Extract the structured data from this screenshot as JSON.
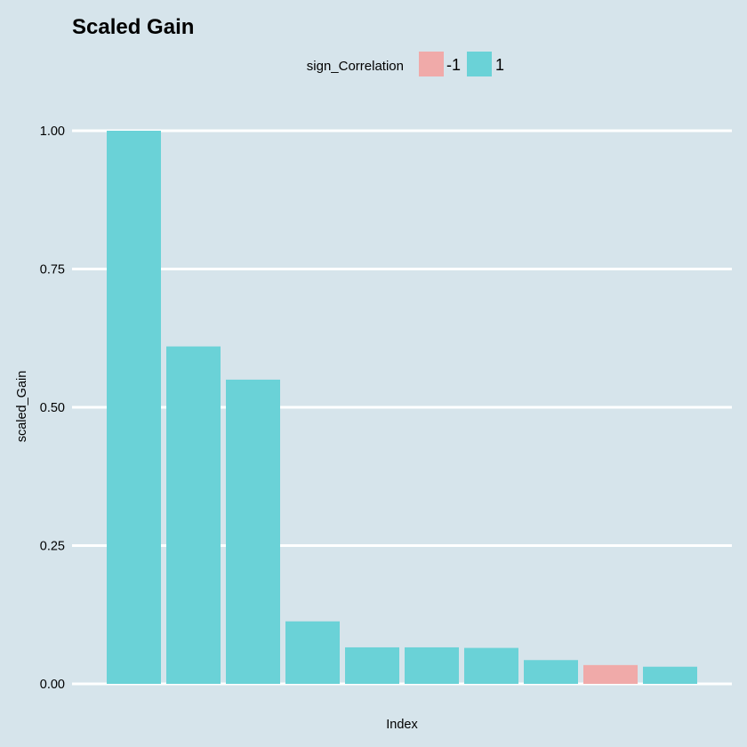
{
  "chart_data": {
    "type": "bar",
    "title": "Scaled Gain",
    "xlabel": "Index",
    "ylabel": "scaled_Gain",
    "ylim": [
      0,
      1
    ],
    "yticks": [
      0,
      0.25,
      0.5,
      0.75,
      1
    ],
    "ytick_labels": [
      "0.00",
      "0.25",
      "0.50",
      "0.75",
      "1.00"
    ],
    "grid": true,
    "legend": {
      "title": "sign_Correlation",
      "position": "top",
      "entries": [
        {
          "label": "-1",
          "color": "#f0aaa9"
        },
        {
          "label": "1",
          "color": "#6ad2d7"
        }
      ]
    },
    "values": [
      1.0,
      0.61,
      0.55,
      0.113,
      0.066,
      0.066,
      0.065,
      0.043,
      0.034,
      0.031
    ],
    "sign": [
      "1",
      "1",
      "1",
      "1",
      "1",
      "1",
      "1",
      "1",
      "-1",
      "1"
    ]
  },
  "colors": {
    "background": "#d6e4eb",
    "grid": "#ffffff",
    "negative": "#f0aaa9",
    "positive": "#6ad2d7"
  }
}
